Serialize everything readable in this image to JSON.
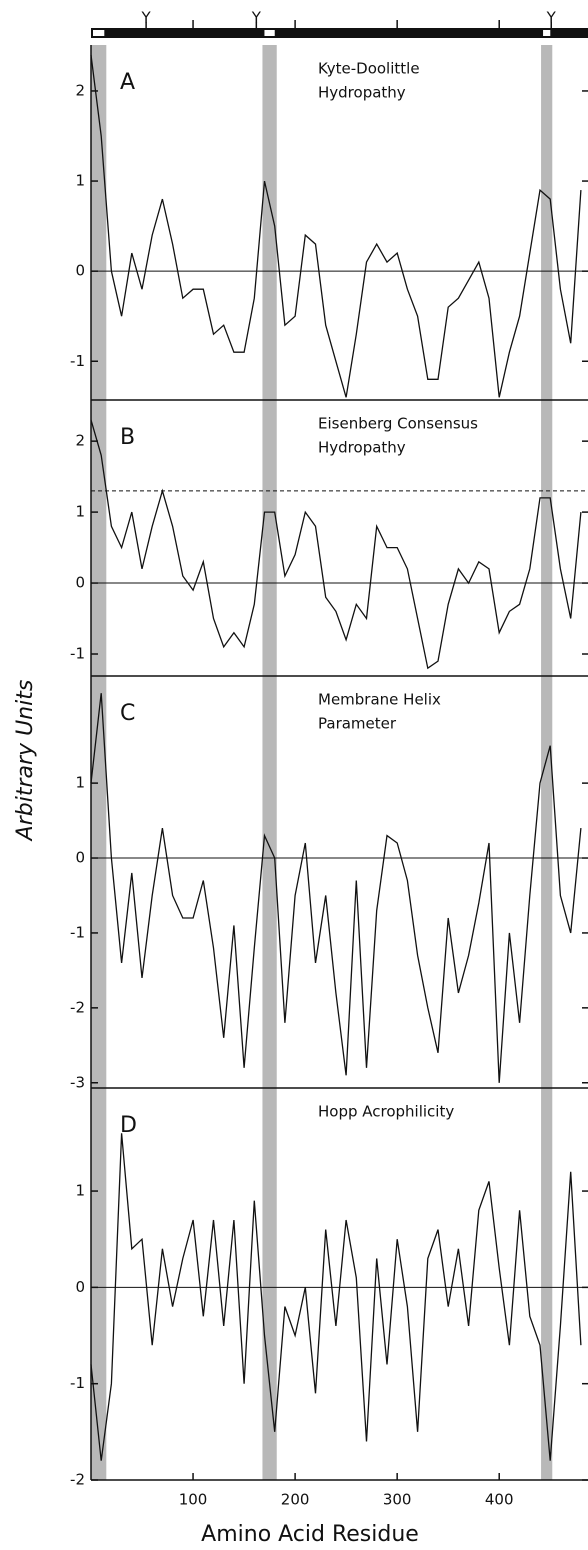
{
  "x_label": "Amino Acid Residue",
  "y_label": "Arbitrary Units",
  "highlight_ranges": [
    [
      0,
      15
    ],
    [
      168,
      182
    ],
    [
      441,
      452
    ]
  ],
  "top_markers": [
    {
      "label": "Y",
      "x": 54
    },
    {
      "label": "Y",
      "x": 162
    },
    {
      "label": "Y",
      "x": 451
    }
  ],
  "chart_data": [
    {
      "type": "line",
      "panel_label": "A",
      "title_lines": [
        "Kyte-Doolittle",
        "Hydropathy"
      ],
      "x": [
        0,
        10,
        20,
        30,
        40,
        50,
        60,
        70,
        80,
        90,
        100,
        110,
        120,
        130,
        140,
        150,
        160,
        170,
        180,
        190,
        200,
        210,
        220,
        230,
        240,
        250,
        260,
        270,
        280,
        290,
        300,
        310,
        320,
        330,
        340,
        350,
        360,
        370,
        380,
        390,
        400,
        410,
        420,
        430,
        440,
        450,
        460,
        470,
        480
      ],
      "values": [
        2.4,
        1.5,
        0.0,
        -0.5,
        0.2,
        -0.2,
        0.4,
        0.8,
        0.3,
        -0.3,
        -0.2,
        -0.2,
        -0.7,
        -0.6,
        -0.9,
        -0.9,
        -0.3,
        1.0,
        0.5,
        -0.6,
        -0.5,
        0.4,
        0.3,
        -0.6,
        -1.0,
        -1.4,
        -0.7,
        0.1,
        0.3,
        0.1,
        0.2,
        -0.2,
        -0.5,
        -1.2,
        -1.2,
        -0.4,
        -0.3,
        -0.1,
        0.1,
        -0.3,
        -1.4,
        -0.9,
        -0.5,
        0.2,
        0.9,
        0.8,
        -0.2,
        -0.8,
        0.9
      ],
      "color": "#111",
      "xlim": [
        0,
        487
      ],
      "ylim": [
        -1.43,
        2.51
      ],
      "yticks": [
        2,
        1,
        0,
        -1
      ]
    },
    {
      "type": "line",
      "panel_label": "B",
      "title_lines": [
        "Eisenberg Consensus",
        "Hydropathy"
      ],
      "x": [
        0,
        10,
        20,
        30,
        40,
        50,
        60,
        70,
        80,
        90,
        100,
        110,
        120,
        130,
        140,
        150,
        160,
        170,
        180,
        190,
        200,
        210,
        220,
        230,
        240,
        250,
        260,
        270,
        280,
        290,
        300,
        310,
        320,
        330,
        340,
        350,
        360,
        370,
        380,
        390,
        400,
        410,
        420,
        430,
        440,
        450,
        460,
        470,
        480
      ],
      "values": [
        2.3,
        1.8,
        0.8,
        0.5,
        1.0,
        0.2,
        0.8,
        1.3,
        0.8,
        0.1,
        -0.1,
        0.3,
        -0.5,
        -0.9,
        -0.7,
        -0.9,
        -0.3,
        1.0,
        1.0,
        0.1,
        0.4,
        1.0,
        0.8,
        -0.2,
        -0.4,
        -0.8,
        -0.3,
        -0.5,
        0.8,
        0.5,
        0.5,
        0.2,
        -0.5,
        -1.2,
        -1.1,
        -0.3,
        0.2,
        0.0,
        0.3,
        0.2,
        -0.7,
        -0.4,
        -0.3,
        0.2,
        1.2,
        1.2,
        0.2,
        -0.5,
        1.0
      ],
      "color": "#111",
      "xlim": [
        0,
        487
      ],
      "ylim": [
        -1.31,
        2.58
      ],
      "yticks": [
        2,
        1,
        0,
        -1
      ],
      "reference_line": 1.3
    },
    {
      "type": "line",
      "panel_label": "C",
      "title_lines": [
        "Membrane Helix",
        "Parameter"
      ],
      "x": [
        0,
        10,
        20,
        30,
        40,
        50,
        60,
        70,
        80,
        90,
        100,
        110,
        120,
        130,
        140,
        150,
        160,
        170,
        180,
        190,
        200,
        210,
        220,
        230,
        240,
        250,
        260,
        270,
        280,
        290,
        300,
        310,
        320,
        330,
        340,
        350,
        360,
        370,
        380,
        390,
        400,
        410,
        420,
        430,
        440,
        450,
        460,
        470,
        480
      ],
      "values": [
        1.0,
        2.2,
        0.0,
        -1.4,
        -0.2,
        -1.6,
        -0.5,
        0.4,
        -0.5,
        -0.8,
        -0.8,
        -0.3,
        -1.2,
        -2.4,
        -0.9,
        -2.8,
        -1.2,
        0.3,
        0.0,
        -2.2,
        -0.5,
        0.2,
        -1.4,
        -0.5,
        -1.8,
        -2.9,
        -0.3,
        -2.8,
        -0.7,
        0.3,
        0.2,
        -0.3,
        -1.3,
        -2.0,
        -2.6,
        -0.8,
        -1.8,
        -1.3,
        -0.6,
        0.2,
        -3.0,
        -1.0,
        -2.2,
        -0.5,
        1.0,
        1.5,
        -0.5,
        -1.0,
        0.4
      ],
      "color": "#111",
      "xlim": [
        0,
        487
      ],
      "ylim": [
        -3.07,
        2.43
      ],
      "yticks": [
        1,
        0,
        -1,
        -2,
        -3
      ]
    },
    {
      "type": "line",
      "panel_label": "D",
      "title_lines": [
        "Hopp Acrophilicity"
      ],
      "x": [
        0,
        10,
        20,
        30,
        40,
        50,
        60,
        70,
        80,
        90,
        100,
        110,
        120,
        130,
        140,
        150,
        160,
        170,
        180,
        190,
        200,
        210,
        220,
        230,
        240,
        250,
        260,
        270,
        280,
        290,
        300,
        310,
        320,
        330,
        340,
        350,
        360,
        370,
        380,
        390,
        400,
        410,
        420,
        430,
        440,
        450,
        460,
        470,
        480
      ],
      "values": [
        -0.8,
        -1.8,
        -1.0,
        1.6,
        0.4,
        0.5,
        -0.6,
        0.4,
        -0.2,
        0.3,
        0.7,
        -0.3,
        0.7,
        -0.4,
        0.7,
        -1.0,
        0.9,
        -0.5,
        -1.5,
        -0.2,
        -0.5,
        0.0,
        -1.1,
        0.6,
        -0.4,
        0.7,
        0.1,
        -1.6,
        0.3,
        -0.8,
        0.5,
        -0.2,
        -1.5,
        0.3,
        0.6,
        -0.2,
        0.4,
        -0.4,
        0.8,
        1.1,
        0.2,
        -0.6,
        0.8,
        -0.3,
        -0.6,
        -1.8,
        -0.4,
        1.2,
        -0.6
      ],
      "color": "#111",
      "xlim": [
        0,
        487
      ],
      "ylim": [
        -2,
        2.07
      ],
      "yticks": [
        1,
        0,
        -1,
        -2
      ],
      "xticks": [
        100,
        200,
        300,
        400
      ]
    }
  ]
}
